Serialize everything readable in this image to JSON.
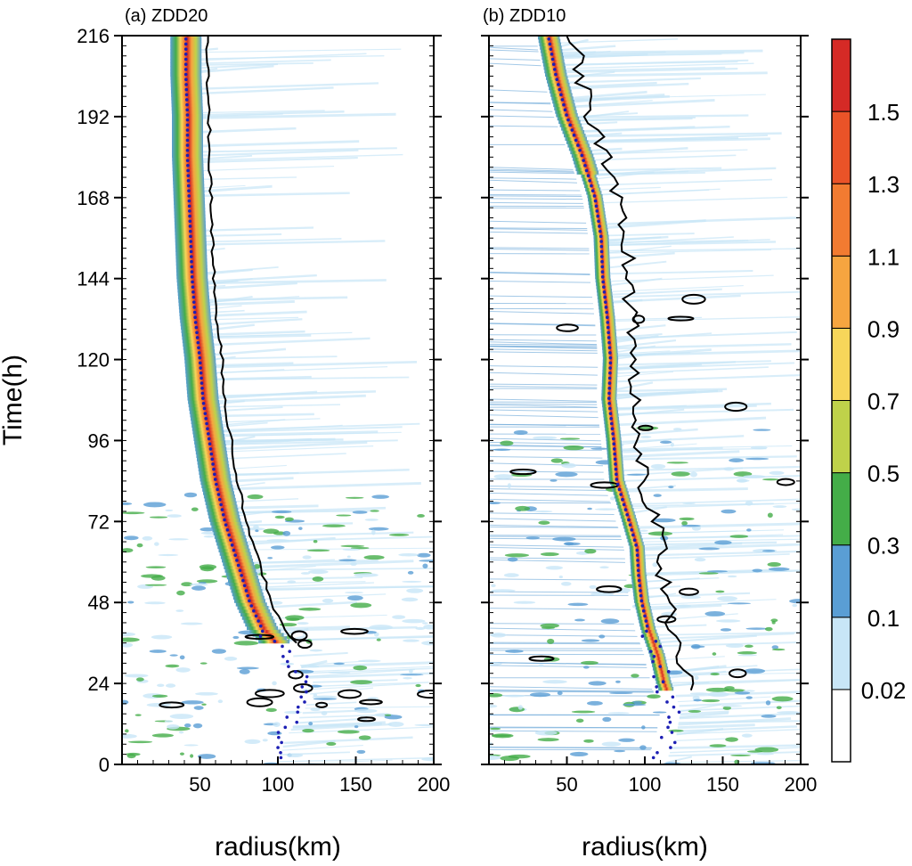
{
  "figure": {
    "ylabel": "Time(h)",
    "colorbar_colors": [
      "#ffffff",
      "#c8e6f7",
      "#5a9ed4",
      "#44ad48",
      "#bfd24a",
      "#f7d65a",
      "#f6a540",
      "#f27b31",
      "#ea5328",
      "#d52a26"
    ]
  },
  "chart_data": [
    {
      "type": "heatmap",
      "title": "(a) ZDD20",
      "xlabel": "radius(km)",
      "ylabel": "Time(h)",
      "xlim": [
        0,
        200
      ],
      "ylim": [
        0,
        216
      ],
      "xticks": [
        50,
        100,
        150,
        200
      ],
      "yticks": [
        0,
        24,
        48,
        72,
        96,
        120,
        144,
        168,
        192,
        216
      ],
      "rmw_track": {
        "time_h": [
          0,
          8,
          16,
          24,
          32,
          40,
          48,
          60,
          72,
          84,
          96,
          108,
          120,
          132,
          144,
          156,
          168,
          180,
          192,
          204,
          216
        ],
        "radius_km": [
          95,
          100,
          112,
          118,
          105,
          90,
          82,
          74,
          66,
          60,
          56,
          52,
          50,
          47,
          45,
          44,
          43,
          42,
          42,
          41,
          41
        ]
      }
    },
    {
      "type": "heatmap",
      "title": "(b) ZDD10",
      "xlabel": "radius(km)",
      "ylabel": "",
      "xlim": [
        0,
        200
      ],
      "ylim": [
        0,
        216
      ],
      "xticks": [
        50,
        100,
        150,
        200
      ],
      "yticks": [
        0,
        24,
        48,
        72,
        96,
        120,
        144,
        168,
        192,
        216
      ],
      "rmw_track": {
        "time_h": [
          0,
          8,
          16,
          24,
          32,
          40,
          48,
          56,
          64,
          72,
          84,
          96,
          108,
          120,
          132,
          144,
          156,
          168,
          180,
          192,
          204,
          216
        ],
        "radius_km": [
          108,
          115,
          118,
          112,
          108,
          102,
          98,
          96,
          95,
          90,
          82,
          80,
          77,
          78,
          76,
          73,
          72,
          68,
          60,
          50,
          43,
          38
        ]
      }
    },
    {
      "type": "colorbar",
      "levels": [
        "0.02",
        "0.1",
        "0.3",
        "0.5",
        "0.7",
        "0.9",
        "1.1",
        "1.3",
        "1.5"
      ]
    }
  ]
}
